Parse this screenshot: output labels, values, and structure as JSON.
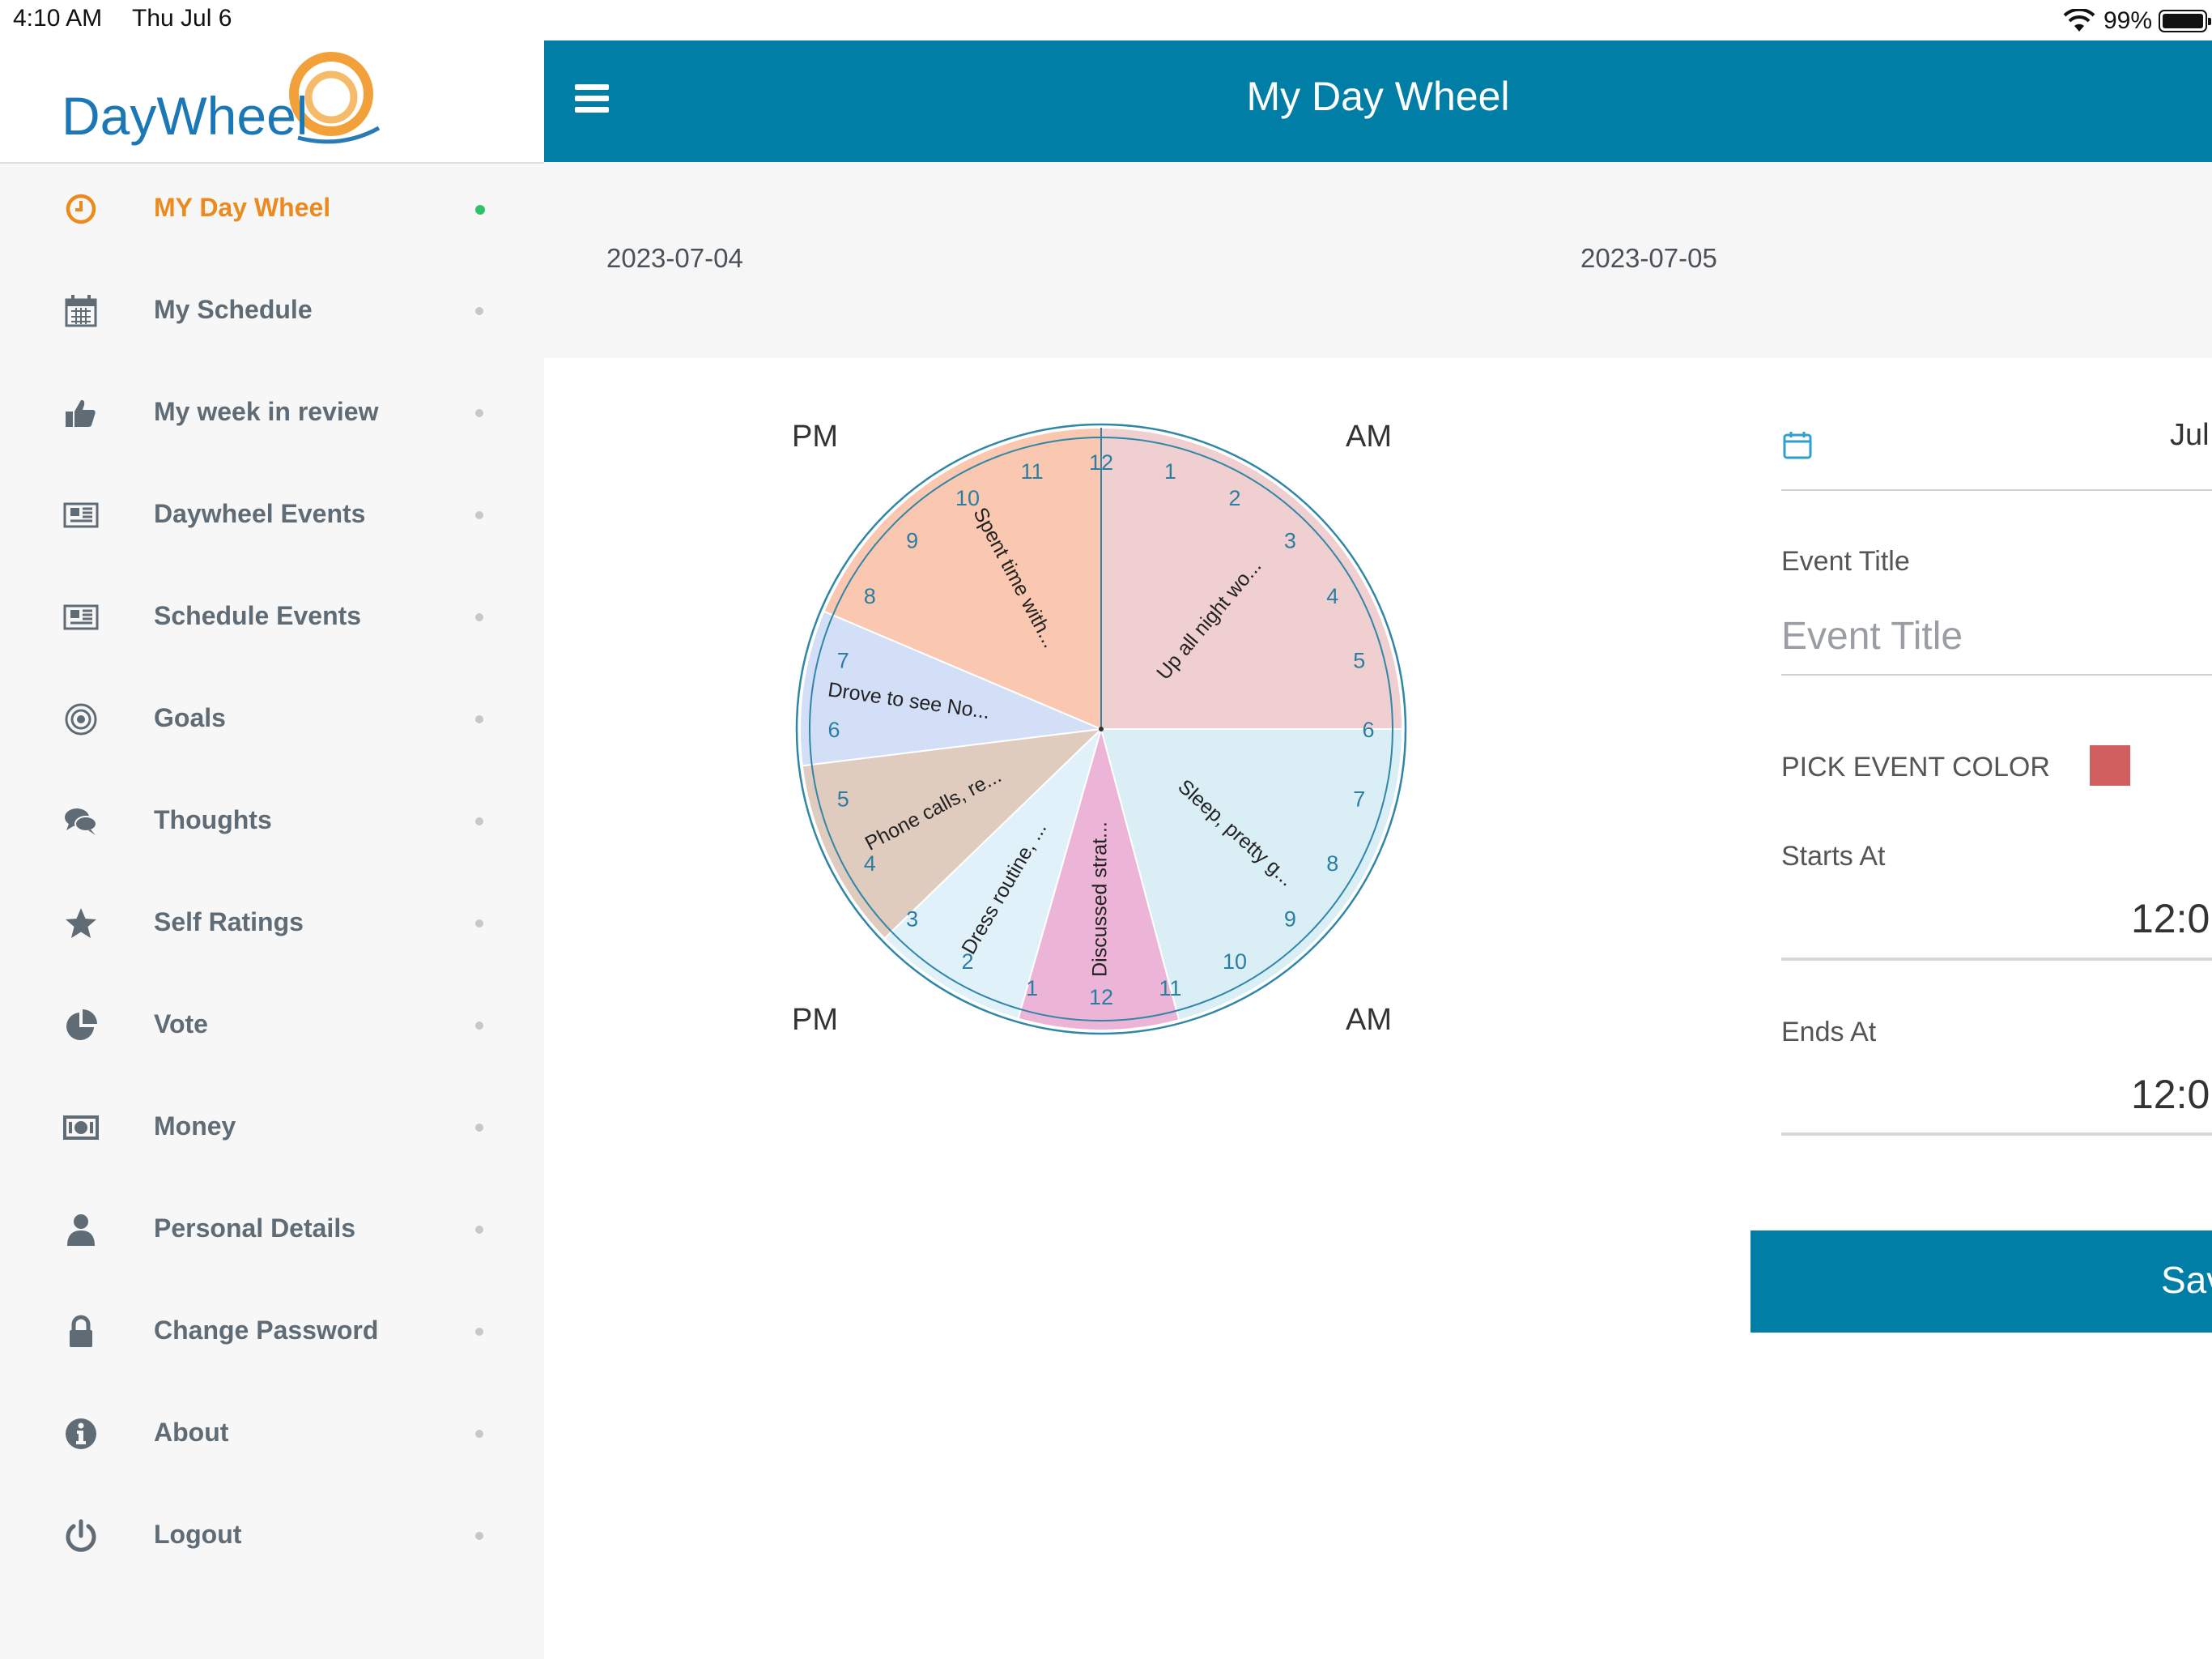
{
  "status_bar": {
    "time": "4:10 AM",
    "date": "Thu Jul 6",
    "battery": "99%"
  },
  "brand": {
    "logo_text": "DayWheel"
  },
  "sidebar": {
    "items": [
      {
        "label": "MY Day Wheel",
        "icon": "clock-icon",
        "active": true
      },
      {
        "label": "My Schedule",
        "icon": "calendar-icon"
      },
      {
        "label": "My week in review",
        "icon": "thumbs-up-icon"
      },
      {
        "label": "Daywheel Events",
        "icon": "newspaper-icon"
      },
      {
        "label": "Schedule Events",
        "icon": "newspaper-icon"
      },
      {
        "label": "Goals",
        "icon": "target-icon"
      },
      {
        "label": "Thoughts",
        "icon": "chat-bubbles-icon"
      },
      {
        "label": "Self Ratings",
        "icon": "star-icon"
      },
      {
        "label": "Vote",
        "icon": "pie-chart-icon"
      },
      {
        "label": "Money",
        "icon": "money-icon"
      },
      {
        "label": "Personal Details",
        "icon": "user-icon"
      },
      {
        "label": "Change Password",
        "icon": "lock-icon"
      },
      {
        "label": "About",
        "icon": "info-icon"
      },
      {
        "label": "Logout",
        "icon": "power-icon"
      }
    ]
  },
  "header": {
    "title": "My Day Wheel"
  },
  "dates": {
    "previous": "2023-07-04",
    "current": "2023-07-05"
  },
  "wheel": {
    "labels": {
      "top_left": "PM",
      "top_right": "AM",
      "bottom_left": "PM",
      "bottom_right": "AM"
    },
    "outer_hours": [
      "12",
      "1",
      "2",
      "3",
      "4",
      "5",
      "6",
      "7",
      "8",
      "9",
      "10",
      "11"
    ],
    "inner_hours": [
      "12",
      "1",
      "2",
      "3",
      "4",
      "5",
      "6",
      "7",
      "8",
      "9",
      "10",
      "11"
    ],
    "segments": [
      {
        "label": "Up all night wo...",
        "color": "#efcfcf"
      },
      {
        "label": "Sleep, pretty g...",
        "color": "#daeef6"
      },
      {
        "label": "Discussed strat...",
        "color": "#ecb5d8"
      },
      {
        "label": "Dress routine, ...",
        "color": "#e1f1fa"
      },
      {
        "label": "Phone calls, re...",
        "color": "#e0cbbf"
      },
      {
        "label": "Drove to see No...",
        "color": "#d3dff6"
      },
      {
        "label": "Spent time with...",
        "color": "#fac8b0"
      }
    ],
    "ring_color": "#2f86a6"
  },
  "form": {
    "date_value": "Jul",
    "event_title_label": "Event Title",
    "event_title_placeholder": "Event Title",
    "pick_color_label": "PICK EVENT COLOR",
    "event_color": "#d15f5f",
    "starts_at_label": "Starts At",
    "starts_at_value": "12:0",
    "ends_at_label": "Ends At",
    "ends_at_value": "12:0",
    "save_label": "Sav"
  },
  "colors": {
    "primary": "#007ea6",
    "accent": "#ec8a1e",
    "active_dot": "#2fc26c"
  }
}
